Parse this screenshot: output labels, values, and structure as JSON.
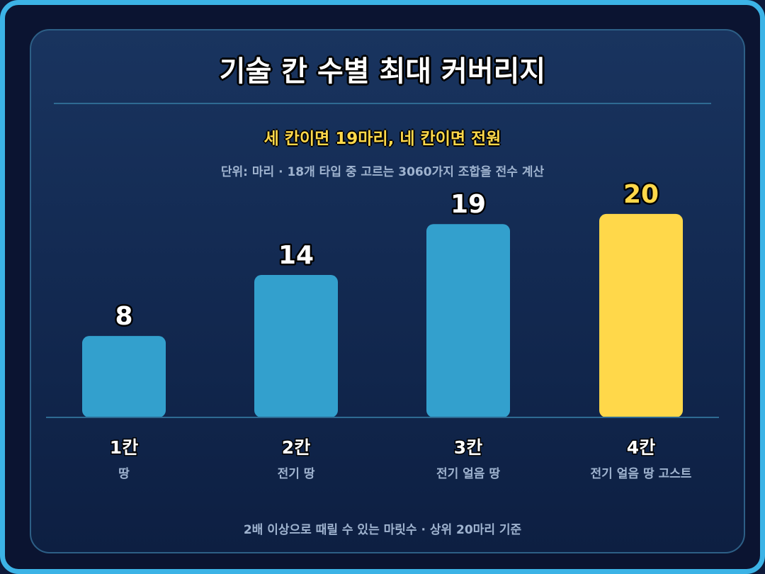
{
  "title": "기술 칸 수별 최대 커버리지",
  "subtitle": "세 칸이면 19마리, 네 칸이면 전원",
  "unit_note": "단위: 마리 · 18개 타입 중 고르는 3060가지 조합을 전수 계산",
  "footer": "2배 이상으로 때릴 수 있는 마릿수 · 상위 20마리 기준",
  "colors": {
    "bar": "#33a0cd",
    "highlight": "#ffd84a",
    "axis": "#2e6a92",
    "label": "#ffffff",
    "sublabel": "#9fb3cf"
  },
  "chart_data": {
    "type": "bar",
    "categories": [
      "1칸",
      "2칸",
      "3칸",
      "4칸"
    ],
    "category_sublabels": [
      "땅",
      "전기 땅",
      "전기 얼음 땅",
      "전기 얼음 땅 고스트"
    ],
    "values": [
      8,
      14,
      19,
      20
    ],
    "highlight_index": 3,
    "title": "기술 칸 수별 최대 커버리지",
    "xlabel": "",
    "ylabel": "",
    "ylim": [
      0,
      22.5
    ],
    "grid": false,
    "legend": "none"
  }
}
